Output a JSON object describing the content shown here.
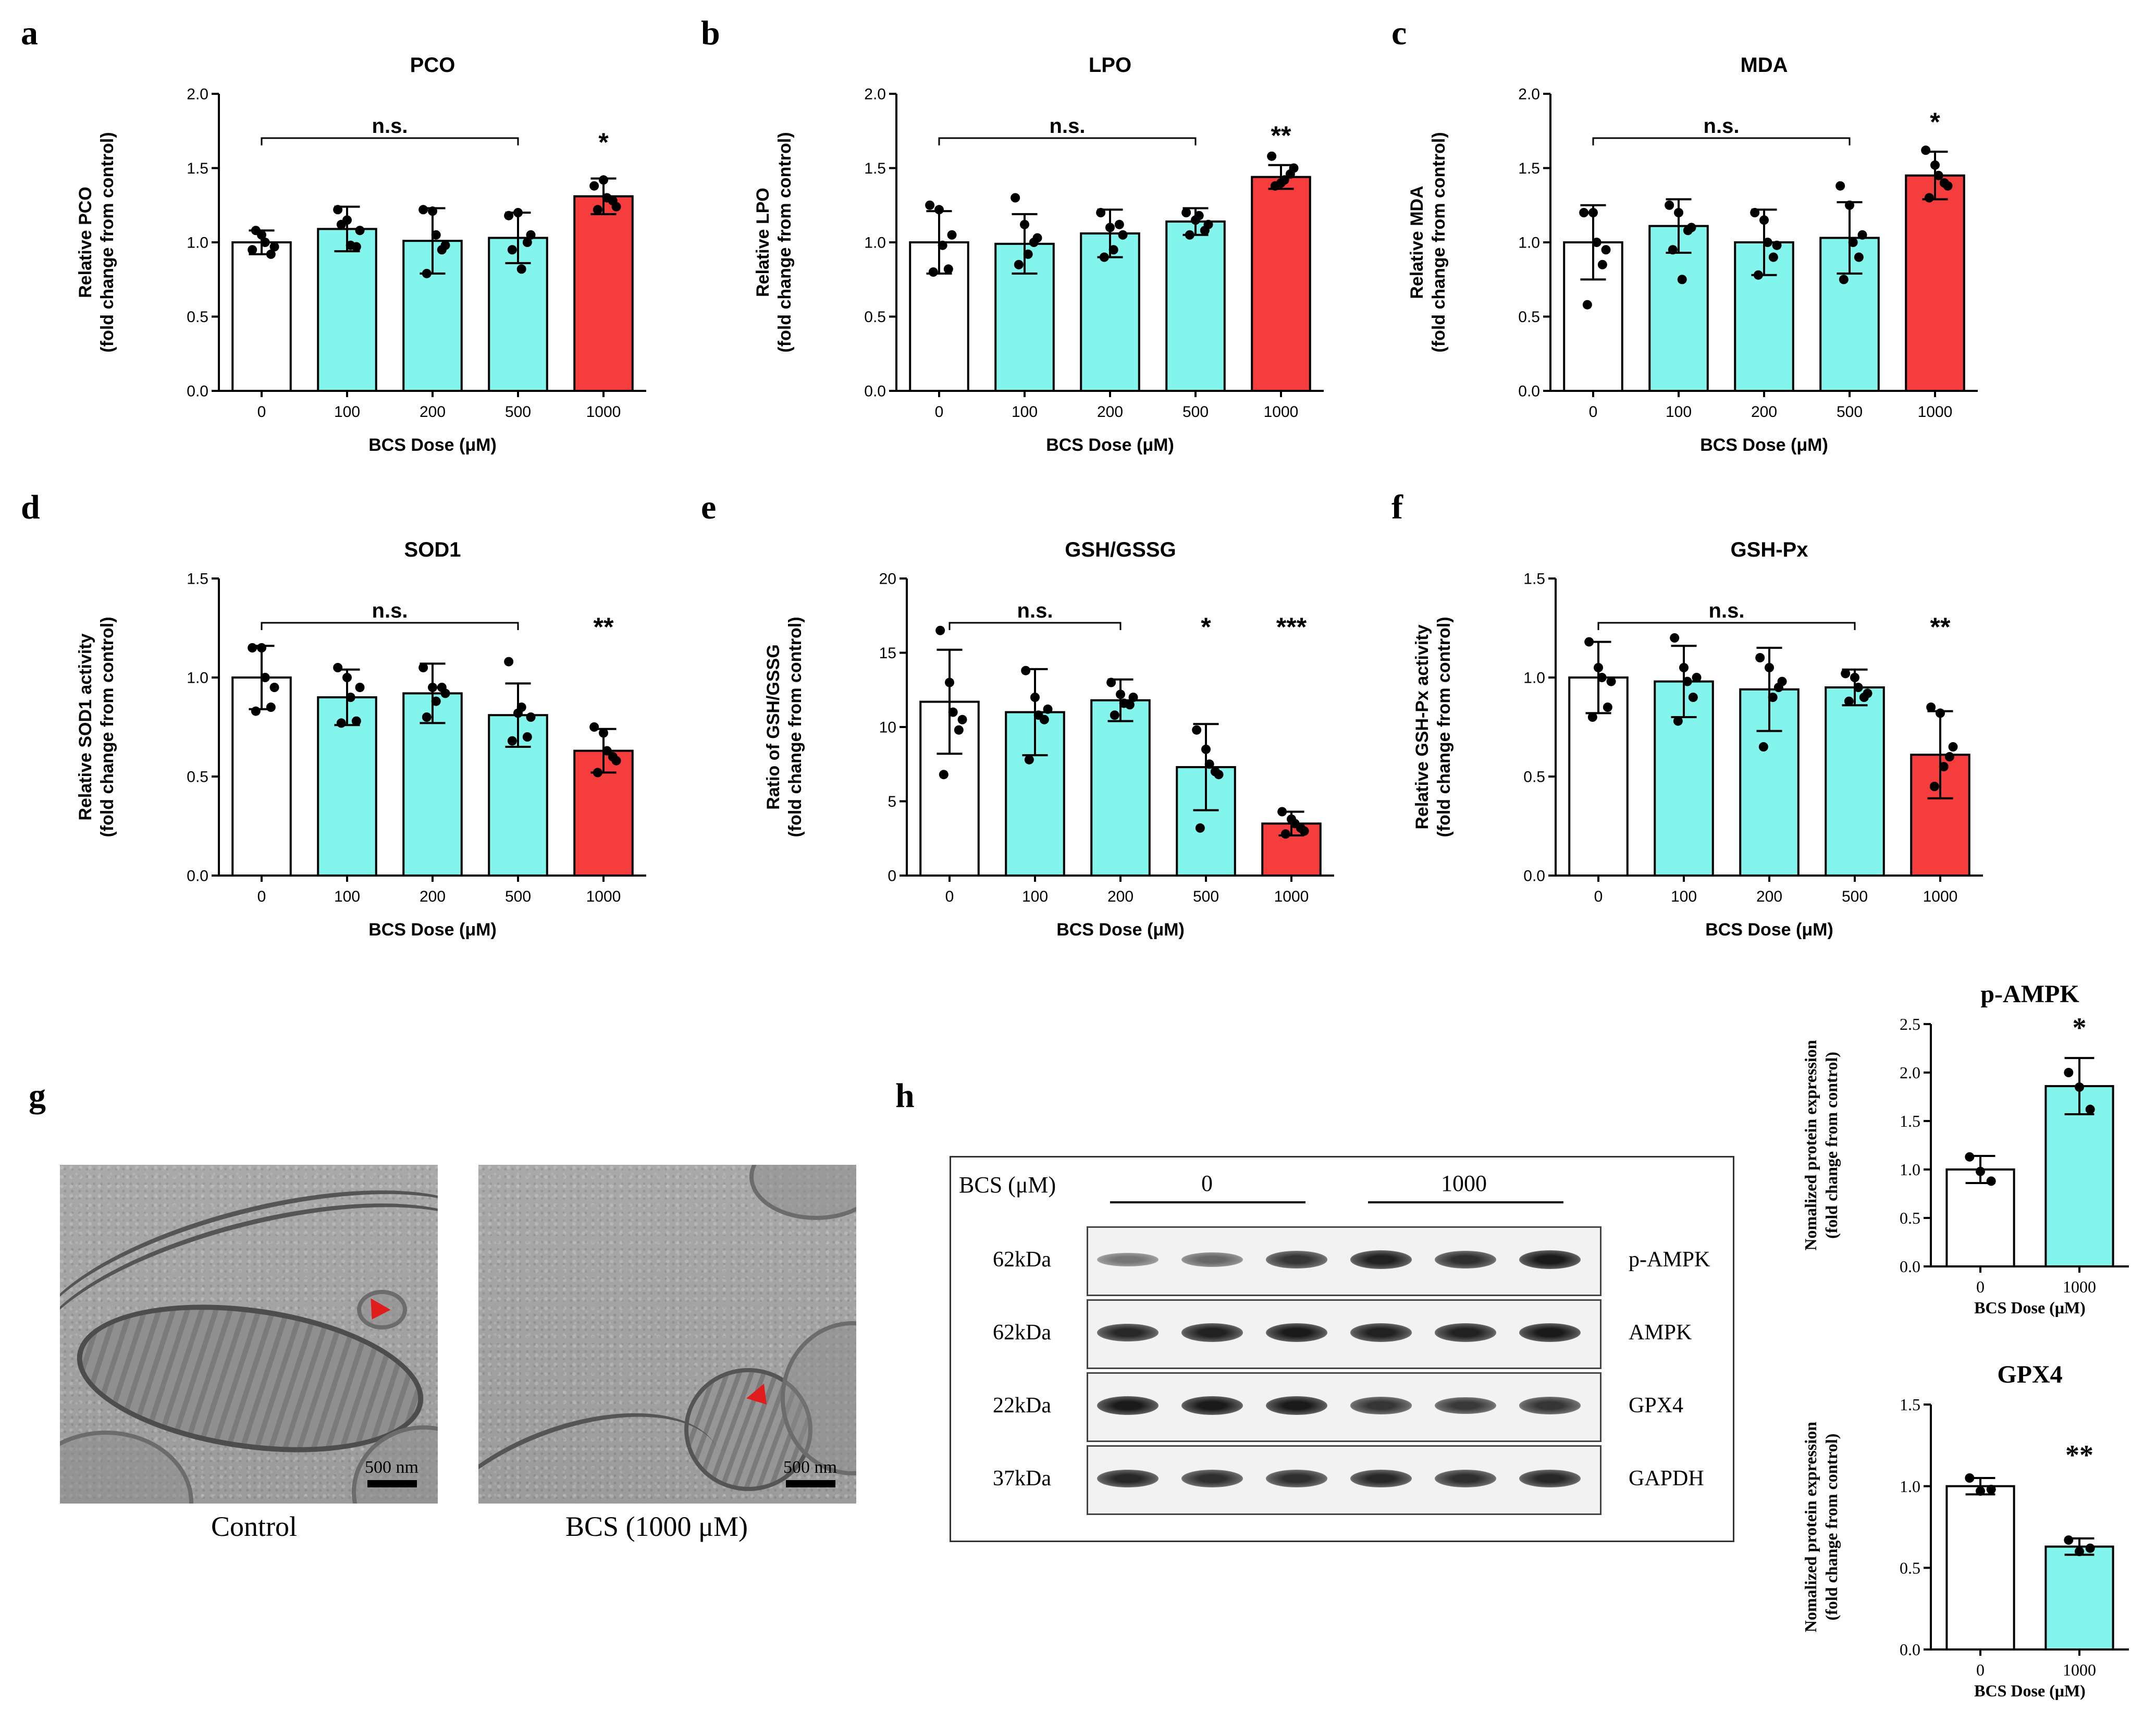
{
  "panels": [
    {
      "id": "a",
      "letter": "a",
      "title": "PCO",
      "ylabel": [
        "Relative PCO",
        "(fold change from control)"
      ],
      "xlabel": "BCS Dose (μM)",
      "ylim": [
        0,
        2.0
      ],
      "yticks": [
        "0.0",
        "0.5",
        "1.0",
        "1.5",
        "2.0"
      ],
      "categories": [
        "0",
        "100",
        "200",
        "500",
        "1000"
      ],
      "values": [
        1.0,
        1.09,
        1.01,
        1.03,
        1.31
      ],
      "errors": [
        0.08,
        0.15,
        0.22,
        0.17,
        0.12
      ],
      "points": [
        [
          0.95,
          1.05,
          0.92,
          1.08,
          1.0,
          0.97
        ],
        [
          1.22,
          1.15,
          0.97,
          1.12,
          0.98,
          1.08
        ],
        [
          1.22,
          1.21,
          0.95,
          0.79,
          1.05,
          0.98
        ],
        [
          1.18,
          1.2,
          1.0,
          0.95,
          0.82,
          1.05
        ],
        [
          1.38,
          1.42,
          1.28,
          1.22,
          1.3,
          1.24
        ]
      ],
      "colors": [
        "#ffffff",
        "#84f5ec",
        "#84f5ec",
        "#84f5ec",
        "#f53d3d"
      ],
      "bracket": {
        "from": 0,
        "to": 3,
        "label": "n.s."
      },
      "sig": [
        {
          "index": 4,
          "label": "*"
        }
      ]
    },
    {
      "id": "b",
      "letter": "b",
      "title": "LPO",
      "ylabel": [
        "Relative LPO",
        "(fold change from control)"
      ],
      "xlabel": "BCS Dose (μM)",
      "ylim": [
        0,
        2.0
      ],
      "yticks": [
        "0.0",
        "0.5",
        "1.0",
        "1.5",
        "2.0"
      ],
      "categories": [
        "0",
        "100",
        "200",
        "500",
        "1000"
      ],
      "values": [
        1.0,
        0.99,
        1.06,
        1.14,
        1.44
      ],
      "errors": [
        0.21,
        0.2,
        0.16,
        0.09,
        0.08
      ],
      "points": [
        [
          1.25,
          1.22,
          0.82,
          0.8,
          0.98,
          1.05
        ],
        [
          1.3,
          1.12,
          1.0,
          0.85,
          0.92,
          1.03
        ],
        [
          1.2,
          1.1,
          1.12,
          0.9,
          0.95,
          1.05
        ],
        [
          1.2,
          1.15,
          1.08,
          1.05,
          1.18,
          1.12
        ],
        [
          1.58,
          1.4,
          1.46,
          1.38,
          1.42,
          1.5
        ]
      ],
      "colors": [
        "#ffffff",
        "#84f5ec",
        "#84f5ec",
        "#84f5ec",
        "#f53d3d"
      ],
      "bracket": {
        "from": 0,
        "to": 3,
        "label": "n.s."
      },
      "sig": [
        {
          "index": 4,
          "label": "**"
        }
      ]
    },
    {
      "id": "c",
      "letter": "c",
      "title": "MDA",
      "ylabel": [
        "Relative MDA",
        "(fold change from control)"
      ],
      "xlabel": "BCS Dose (μM)",
      "ylim": [
        0,
        2.0
      ],
      "yticks": [
        "0.0",
        "0.5",
        "1.0",
        "1.5",
        "2.0"
      ],
      "categories": [
        "0",
        "100",
        "200",
        "500",
        "1000"
      ],
      "values": [
        1.0,
        1.11,
        1.0,
        1.03,
        1.45
      ],
      "errors": [
        0.25,
        0.18,
        0.22,
        0.24,
        0.16
      ],
      "points": [
        [
          1.2,
          1.2,
          0.85,
          0.58,
          1.0,
          0.95
        ],
        [
          1.25,
          1.2,
          1.08,
          0.95,
          0.75,
          1.1
        ],
        [
          1.2,
          1.15,
          0.9,
          0.78,
          1.0,
          0.98
        ],
        [
          1.38,
          1.25,
          0.9,
          0.75,
          1.0,
          1.05
        ],
        [
          1.62,
          1.52,
          1.4,
          1.3,
          1.45,
          1.38
        ]
      ],
      "colors": [
        "#ffffff",
        "#84f5ec",
        "#84f5ec",
        "#84f5ec",
        "#f53d3d"
      ],
      "bracket": {
        "from": 0,
        "to": 3,
        "label": "n.s."
      },
      "sig": [
        {
          "index": 4,
          "label": "*"
        }
      ]
    },
    {
      "id": "d",
      "letter": "d",
      "title": "SOD1",
      "ylabel": [
        "Relative SOD1 activity",
        "(fold change from control)"
      ],
      "xlabel": "BCS Dose (μM)",
      "ylim": [
        0,
        1.5
      ],
      "yticks": [
        "0.0",
        "0.5",
        "1.0",
        "1.5"
      ],
      "categories": [
        "0",
        "100",
        "200",
        "500",
        "1000"
      ],
      "values": [
        1.0,
        0.9,
        0.92,
        0.81,
        0.63
      ],
      "errors": [
        0.16,
        0.14,
        0.15,
        0.16,
        0.11
      ],
      "points": [
        [
          1.15,
          1.15,
          0.85,
          0.83,
          1.0,
          0.95
        ],
        [
          1.05,
          1.0,
          0.78,
          0.77,
          0.9,
          0.95
        ],
        [
          1.05,
          0.95,
          0.95,
          0.8,
          0.88,
          0.92
        ],
        [
          1.08,
          0.82,
          0.7,
          0.68,
          0.85,
          0.8
        ],
        [
          0.75,
          0.72,
          0.6,
          0.52,
          0.63,
          0.58
        ]
      ],
      "colors": [
        "#ffffff",
        "#84f5ec",
        "#84f5ec",
        "#84f5ec",
        "#f53d3d"
      ],
      "bracket": {
        "from": 0,
        "to": 3,
        "label": "n.s."
      },
      "sig": [
        {
          "index": 4,
          "label": "**"
        }
      ]
    },
    {
      "id": "e",
      "letter": "e",
      "title": "GSH/GSSG",
      "ylabel": [
        "Ratio of GSH/GSSG",
        "(fold change from control)"
      ],
      "xlabel": "BCS Dose (μM)",
      "ylim": [
        0,
        20
      ],
      "yticks": [
        "0",
        "5",
        "10",
        "15",
        "20"
      ],
      "categories": [
        "0",
        "100",
        "200",
        "500",
        "1000"
      ],
      "values": [
        11.7,
        11.0,
        11.8,
        7.3,
        3.5
      ],
      "errors": [
        3.5,
        2.9,
        1.4,
        2.9,
        0.8
      ],
      "points": [
        [
          16.5,
          13.0,
          9.8,
          6.8,
          11.0,
          10.5
        ],
        [
          13.8,
          12.0,
          10.5,
          7.8,
          10.8,
          11.2
        ],
        [
          13.0,
          12.2,
          11.5,
          10.8,
          11.6,
          12.0
        ],
        [
          9.8,
          8.5,
          7.0,
          3.2,
          7.5,
          6.8
        ],
        [
          4.3,
          3.8,
          3.2,
          2.8,
          3.5,
          3.0
        ]
      ],
      "colors": [
        "#ffffff",
        "#84f5ec",
        "#84f5ec",
        "#84f5ec",
        "#f53d3d"
      ],
      "bracket": {
        "from": 0,
        "to": 2,
        "label": "n.s."
      },
      "sig": [
        {
          "index": 3,
          "label": "*"
        },
        {
          "index": 4,
          "label": "***"
        }
      ]
    },
    {
      "id": "f",
      "letter": "f",
      "title": "GSH-Px",
      "ylabel": [
        "Relative GSH-Px activity",
        "(fold change from control)"
      ],
      "xlabel": "BCS Dose (μM)",
      "ylim": [
        0,
        1.5
      ],
      "yticks": [
        "0.0",
        "0.5",
        "1.0",
        "1.5"
      ],
      "categories": [
        "0",
        "100",
        "200",
        "500",
        "1000"
      ],
      "values": [
        1.0,
        0.98,
        0.94,
        0.95,
        0.61
      ],
      "errors": [
        0.18,
        0.18,
        0.21,
        0.09,
        0.22
      ],
      "points": [
        [
          1.18,
          1.05,
          0.85,
          0.8,
          1.0,
          0.98
        ],
        [
          1.2,
          1.05,
          0.9,
          0.78,
          0.98,
          1.0
        ],
        [
          1.1,
          1.05,
          0.95,
          0.65,
          0.9,
          0.98
        ],
        [
          1.02,
          1.0,
          0.9,
          0.88,
          0.95,
          0.92
        ],
        [
          0.85,
          0.82,
          0.6,
          0.45,
          0.55,
          0.65
        ]
      ],
      "colors": [
        "#ffffff",
        "#84f5ec",
        "#84f5ec",
        "#84f5ec",
        "#f53d3d"
      ],
      "bracket": {
        "from": 0,
        "to": 3,
        "label": "n.s."
      },
      "sig": [
        {
          "index": 4,
          "label": "**"
        }
      ]
    },
    {
      "id": "h1",
      "letter": "",
      "title": "p-AMPK",
      "ylabel": [
        "Nomalized protein expression",
        "(fold change from control)"
      ],
      "xlabel": "BCS Dose (μM)",
      "ylim": [
        0,
        2.5
      ],
      "yticks": [
        "0.0",
        "0.5",
        "1.0",
        "1.5",
        "2.0",
        "2.5"
      ],
      "categories": [
        "0",
        "1000"
      ],
      "values": [
        1.0,
        1.86
      ],
      "errors": [
        0.14,
        0.29
      ],
      "points": [
        [
          1.13,
          0.98,
          0.88
        ],
        [
          2.0,
          1.85,
          1.62
        ]
      ],
      "colors": [
        "#ffffff",
        "#84f5ec"
      ],
      "bracket": null,
      "sig": [
        {
          "index": 1,
          "label": "*"
        }
      ],
      "serif": true
    },
    {
      "id": "h2",
      "letter": "",
      "title": "GPX4",
      "ylabel": [
        "Nomalized protein expression",
        "(fold change from control)"
      ],
      "xlabel": "BCS Dose (μM)",
      "ylim": [
        0,
        1.5
      ],
      "yticks": [
        "0.0",
        "0.5",
        "1.0",
        "1.5"
      ],
      "categories": [
        "0",
        "1000"
      ],
      "values": [
        1.0,
        0.63
      ],
      "errors": [
        0.05,
        0.05
      ],
      "points": [
        [
          1.05,
          0.97,
          0.98
        ],
        [
          0.67,
          0.6,
          0.62
        ]
      ],
      "colors": [
        "#ffffff",
        "#84f5ec"
      ],
      "bracket": null,
      "sig": [
        {
          "index": 1,
          "label": "**"
        }
      ],
      "serif": true
    }
  ],
  "chart_data": [
    {
      "type": "bar",
      "title": "PCO",
      "categories": [
        "0",
        "100",
        "200",
        "500",
        "1000"
      ],
      "values": [
        1.0,
        1.09,
        1.01,
        1.03,
        1.31
      ],
      "xlabel": "BCS Dose (μM)",
      "ylabel": "Relative PCO (fold change from control)",
      "ylim": [
        0,
        2.0
      ]
    },
    {
      "type": "bar",
      "title": "LPO",
      "categories": [
        "0",
        "100",
        "200",
        "500",
        "1000"
      ],
      "values": [
        1.0,
        0.99,
        1.06,
        1.14,
        1.44
      ],
      "xlabel": "BCS Dose (μM)",
      "ylabel": "Relative LPO (fold change from control)",
      "ylim": [
        0,
        2.0
      ]
    },
    {
      "type": "bar",
      "title": "MDA",
      "categories": [
        "0",
        "100",
        "200",
        "500",
        "1000"
      ],
      "values": [
        1.0,
        1.11,
        1.0,
        1.03,
        1.45
      ],
      "xlabel": "BCS Dose (μM)",
      "ylabel": "Relative MDA (fold change from control)",
      "ylim": [
        0,
        2.0
      ]
    },
    {
      "type": "bar",
      "title": "SOD1",
      "categories": [
        "0",
        "100",
        "200",
        "500",
        "1000"
      ],
      "values": [
        1.0,
        0.9,
        0.92,
        0.81,
        0.63
      ],
      "xlabel": "BCS Dose (μM)",
      "ylabel": "Relative SOD1 activity (fold change from control)",
      "ylim": [
        0,
        1.5
      ]
    },
    {
      "type": "bar",
      "title": "GSH/GSSG",
      "categories": [
        "0",
        "100",
        "200",
        "500",
        "1000"
      ],
      "values": [
        11.7,
        11.0,
        11.8,
        7.3,
        3.5
      ],
      "xlabel": "BCS Dose (μM)",
      "ylabel": "Ratio of GSH/GSSG (fold change from control)",
      "ylim": [
        0,
        20
      ]
    },
    {
      "type": "bar",
      "title": "GSH-Px",
      "categories": [
        "0",
        "100",
        "200",
        "500",
        "1000"
      ],
      "values": [
        1.0,
        0.98,
        0.94,
        0.95,
        0.61
      ],
      "xlabel": "BCS Dose (μM)",
      "ylabel": "Relative GSH-Px activity (fold change from control)",
      "ylim": [
        0,
        1.5
      ]
    },
    {
      "type": "bar",
      "title": "p-AMPK",
      "categories": [
        "0",
        "1000"
      ],
      "values": [
        1.0,
        1.86
      ],
      "xlabel": "BCS Dose (μM)",
      "ylabel": "Nomalized protein expression (fold change from control)",
      "ylim": [
        0,
        2.5
      ]
    },
    {
      "type": "bar",
      "title": "GPX4",
      "categories": [
        "0",
        "1000"
      ],
      "values": [
        1.0,
        0.63
      ],
      "xlabel": "BCS Dose (μM)",
      "ylabel": "Nomalized protein expression (fold change from control)",
      "ylim": [
        0,
        1.5
      ]
    }
  ],
  "panel_g": {
    "letter": "g",
    "control_caption": "Control",
    "bcs_caption": "BCS (1000 μM)",
    "scale_label": "500 nm"
  },
  "panel_h": {
    "letter": "h",
    "dose_label": "BCS (μM)",
    "group0": "0",
    "group1": "1000",
    "rows": [
      {
        "mw": "62kDa",
        "protein": "p-AMPK"
      },
      {
        "mw": "62kDa",
        "protein": "AMPK"
      },
      {
        "mw": "22kDa",
        "protein": "GPX4"
      },
      {
        "mw": "37kDa",
        "protein": "GAPDH"
      }
    ]
  }
}
